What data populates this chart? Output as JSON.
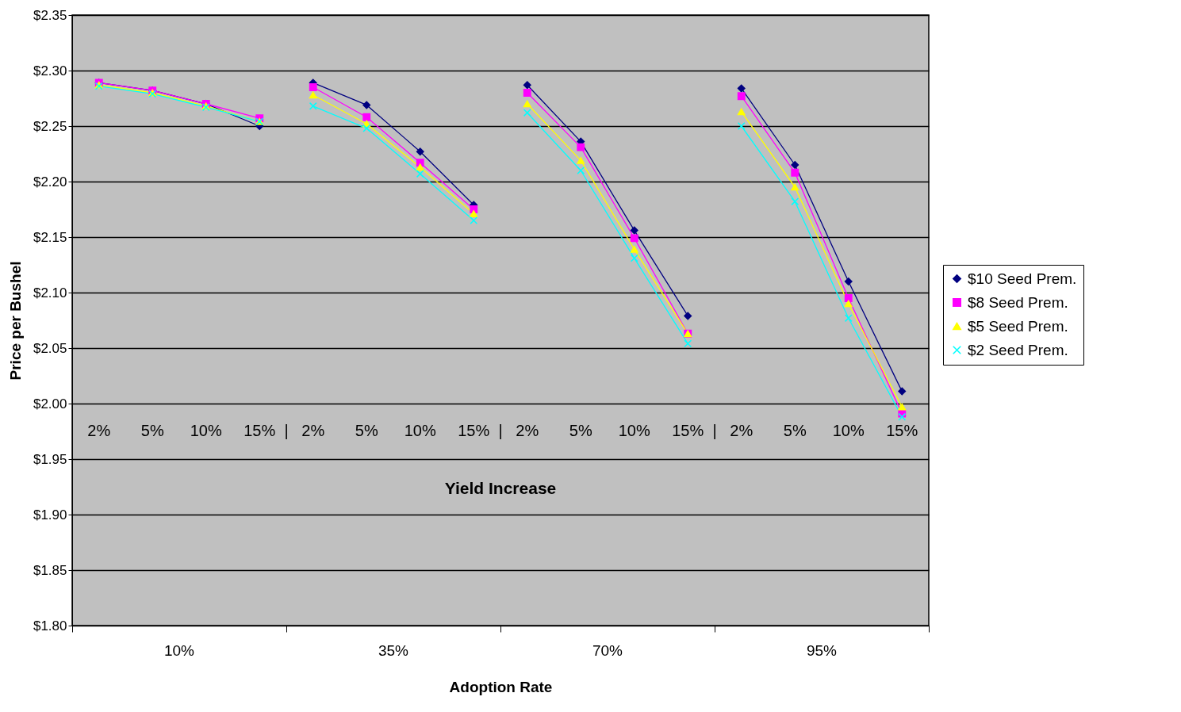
{
  "chart_data": {
    "type": "line",
    "xlabel": "Adoption Rate",
    "ylabel": "Price per Bushel",
    "categories": [
      "2%",
      "5%",
      "10%",
      "15%",
      "2%",
      "5%",
      "10%",
      "15%",
      "2%",
      "5%",
      "10%",
      "15%",
      "2%",
      "5%",
      "10%",
      "15%"
    ],
    "series": [
      {
        "name": "$10 Seed Prem.",
        "color": "#000080",
        "marker": "diamond",
        "values": [
          2.289,
          2.282,
          2.27,
          2.25,
          2.289,
          2.269,
          2.227,
          2.179,
          2.287,
          2.236,
          2.156,
          2.079,
          2.284,
          2.215,
          2.11,
          2.011
        ]
      },
      {
        "name": "$8 Seed Prem.",
        "color": "#ff00ff",
        "marker": "square",
        "values": [
          2.289,
          2.282,
          2.27,
          2.257,
          2.285,
          2.258,
          2.217,
          2.175,
          2.28,
          2.231,
          2.149,
          2.063,
          2.277,
          2.208,
          2.095,
          1.991
        ]
      },
      {
        "name": "$5 Seed Prem.",
        "color": "#ffff00",
        "marker": "triangle",
        "values": [
          2.287,
          2.28,
          2.268,
          2.254,
          2.278,
          2.252,
          2.213,
          2.171,
          2.27,
          2.219,
          2.139,
          2.063,
          2.263,
          2.195,
          2.09,
          1.997
        ]
      },
      {
        "name": "$2 Seed Prem.",
        "color": "#00ffff",
        "marker": "cross",
        "values": [
          2.286,
          2.279,
          2.267,
          2.254,
          2.268,
          2.248,
          2.207,
          2.165,
          2.262,
          2.21,
          2.131,
          2.054,
          2.25,
          2.182,
          2.077,
          1.988
        ]
      }
    ],
    "ylim": [
      1.8,
      2.35
    ],
    "yticks": [
      {
        "value": 1.8,
        "label": "$1.80"
      },
      {
        "value": 1.85,
        "label": "$1.85"
      },
      {
        "value": 1.9,
        "label": "$1.90"
      },
      {
        "value": 1.95,
        "label": "$1.95"
      },
      {
        "value": 2.0,
        "label": "$2.00"
      },
      {
        "value": 2.05,
        "label": "$2.05"
      },
      {
        "value": 2.1,
        "label": "$2.10"
      },
      {
        "value": 2.15,
        "label": "$2.15"
      },
      {
        "value": 2.2,
        "label": "$2.20"
      },
      {
        "value": 2.25,
        "label": "$2.25"
      },
      {
        "value": 2.3,
        "label": "$2.30"
      },
      {
        "value": 2.35,
        "label": "$2.35"
      }
    ],
    "annotations": [
      "Yield Increase",
      "10%",
      "35%",
      "70%",
      "95%",
      "|",
      "|",
      "|"
    ],
    "grid": "y",
    "legend": "right"
  }
}
